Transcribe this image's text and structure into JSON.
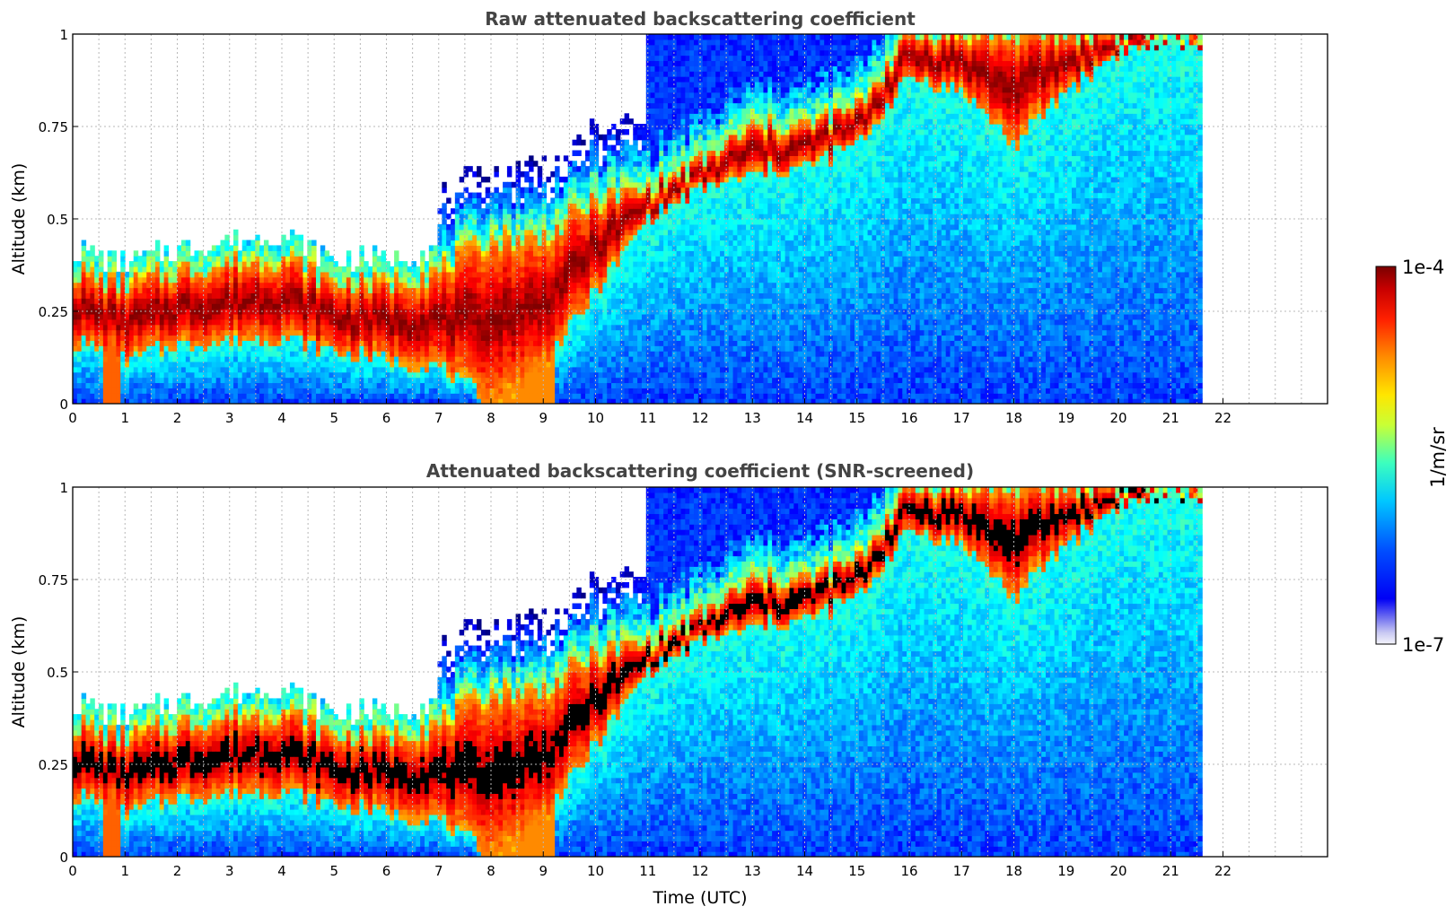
{
  "chart_data": [
    {
      "type": "heatmap",
      "title": "Raw attenuated backscattering coefficient",
      "xlabel": "",
      "ylabel": "Altitude (km)",
      "xlim": [
        0,
        24
      ],
      "ylim": [
        0,
        1
      ],
      "xticks": [
        "0",
        "1",
        "2",
        "3",
        "4",
        "5",
        "6",
        "7",
        "8",
        "9",
        "10",
        "11",
        "12",
        "13",
        "14",
        "15",
        "16",
        "17",
        "18",
        "19",
        "20",
        "21",
        "22"
      ],
      "yticks": [
        "0",
        "0.25",
        "0.5",
        "0.75",
        "1"
      ],
      "data_end_hour": 21.6,
      "grid": true,
      "screened": false,
      "description_series": [
        {
          "name": "dense_layer_base_km",
          "x": [
            0,
            1,
            2,
            3,
            4,
            5,
            6,
            7,
            8,
            9,
            10,
            11,
            12,
            13,
            14,
            15,
            16,
            17,
            18,
            19,
            20,
            21
          ],
          "values": [
            0.17,
            0.12,
            0.16,
            0.17,
            0.18,
            0.14,
            0.12,
            0.1,
            0.0,
            0.1,
            0.3,
            0.5,
            0.58,
            0.62,
            0.64,
            0.7,
            0.88,
            0.85,
            0.7,
            0.85,
            0.95,
            0.98
          ]
        },
        {
          "name": "dense_layer_top_km",
          "x": [
            0,
            1,
            2,
            3,
            4,
            5,
            6,
            7,
            8,
            9,
            10,
            11,
            12,
            13,
            14,
            15,
            16,
            17,
            18,
            19,
            20,
            21
          ],
          "values": [
            0.36,
            0.32,
            0.36,
            0.38,
            0.4,
            0.33,
            0.33,
            0.36,
            0.45,
            0.45,
            0.55,
            0.58,
            0.65,
            0.75,
            0.75,
            0.8,
            1.0,
            1.0,
            1.0,
            1.0,
            1.0,
            1.0
          ]
        }
      ]
    },
    {
      "type": "heatmap",
      "title": "Attenuated backscattering coefficient (SNR-screened)",
      "xlabel": "Time (UTC)",
      "ylabel": "Altitude (km)",
      "xlim": [
        0,
        24
      ],
      "ylim": [
        0,
        1
      ],
      "xticks": [
        "0",
        "1",
        "2",
        "3",
        "4",
        "5",
        "6",
        "7",
        "8",
        "9",
        "10",
        "11",
        "12",
        "13",
        "14",
        "15",
        "16",
        "17",
        "18",
        "19",
        "20",
        "21",
        "22"
      ],
      "yticks": [
        "0",
        "0.25",
        "0.5",
        "0.75",
        "1"
      ],
      "data_end_hour": 21.6,
      "grid": true,
      "screened": true
    }
  ],
  "colorbar": {
    "label": "1/m/sr",
    "max_label": "1e-4",
    "min_label": "1e-7",
    "vmin": 1e-07,
    "vmax": 0.0001,
    "scale": "log",
    "colormap": "jet"
  }
}
